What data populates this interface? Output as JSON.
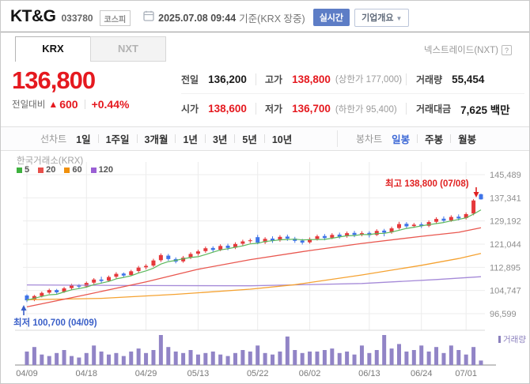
{
  "header": {
    "title": "KT&G",
    "code": "033780",
    "market_badge": "코스피",
    "datetime": "2025.07.08 09:44",
    "datetime_suffix": "기준(KRX 장중)",
    "realtime_badge": "실시간",
    "overview_button": "기업개요",
    "overview_caret": "▼"
  },
  "tabs": {
    "krx": "KRX",
    "nxt": "NXT",
    "nxt_info": "넥스트레이드(NXT)",
    "help_icon": "?"
  },
  "price": {
    "current": "136,800",
    "change_label": "전일대비",
    "change_arrow": "▲",
    "change": "600",
    "change_pct": "+0.44%"
  },
  "quote": {
    "prev_label": "전일",
    "prev": "136,200",
    "high_label": "고가",
    "high": "138,800",
    "upper_limit": "(상한가 177,000)",
    "volume_label": "거래량",
    "volume": "55,454",
    "open_label": "시가",
    "open": "138,600",
    "low_label": "저가",
    "low": "136,700",
    "lower_limit": "(하한가 95,400)",
    "value_label": "거래대금",
    "value": "7,625 백만"
  },
  "toolbar": {
    "line_label": "선차트",
    "periods": [
      "1일",
      "1주일",
      "3개월",
      "1년",
      "3년",
      "5년",
      "10년"
    ],
    "candle_label": "봉차트",
    "candle_types": [
      "일봉",
      "주봉",
      "월봉"
    ],
    "selected_type": "일봉"
  },
  "chart_data": {
    "type": "candlestick",
    "title": "KT&G daily candles with volume",
    "exchange_label": "한국거래소(KRX)",
    "volume_legend_label": "거래량",
    "annotations": {
      "high": {
        "text": "최고 138,800 (07/08)",
        "color": "#e02020"
      },
      "low": {
        "text": "최저 100,700 (04/09)",
        "color": "#3a5fc8"
      }
    },
    "ma_legend": [
      {
        "label": "5",
        "color": "#3eb13e"
      },
      {
        "label": "20",
        "color": "#e8504a"
      },
      {
        "label": "60",
        "color": "#f0900c"
      },
      {
        "label": "120",
        "color": "#9a5fd4"
      }
    ],
    "colors": {
      "up": "#e5383b",
      "down": "#3f74e8",
      "volume": "#9184c6",
      "ma5": "#5cb85c",
      "ma20": "#e9574f",
      "ma60": "#f5a231",
      "ma120": "#a58ad8",
      "grid": "#ececec",
      "axis_text": "#8e8e8e"
    },
    "ylim": [
      96599,
      145489
    ],
    "y_ticks": [
      "145,489",
      "137,341",
      "129,192",
      "121,044",
      "112,895",
      "104,747",
      "96,599"
    ],
    "y_tick_values": [
      145489,
      137341,
      129192,
      121044,
      112895,
      104747,
      96599
    ],
    "x_ticks": [
      {
        "label": "04/09",
        "index": 0
      },
      {
        "label": "04/18",
        "index": 8
      },
      {
        "label": "04/29",
        "index": 16
      },
      {
        "label": "05/13",
        "index": 23
      },
      {
        "label": "05/22",
        "index": 31
      },
      {
        "label": "06/02",
        "index": 38
      },
      {
        "label": "06/13",
        "index": 46
      },
      {
        "label": "06/24",
        "index": 53
      },
      {
        "label": "07/01",
        "index": 59
      }
    ],
    "candles_ohlc": [
      [
        103000,
        103400,
        100700,
        101300
      ],
      [
        101500,
        103200,
        101000,
        102800
      ],
      [
        102800,
        104400,
        102300,
        103900
      ],
      [
        104000,
        105400,
        103500,
        104900
      ],
      [
        104900,
        105300,
        103600,
        104100
      ],
      [
        104300,
        106000,
        103900,
        105500
      ],
      [
        105600,
        107100,
        105000,
        106500
      ],
      [
        106600,
        107000,
        105400,
        106100
      ],
      [
        106200,
        107900,
        105800,
        107400
      ],
      [
        107500,
        109100,
        107000,
        108600
      ],
      [
        108600,
        109600,
        107200,
        108100
      ],
      [
        108200,
        110000,
        107800,
        109500
      ],
      [
        109600,
        111200,
        109000,
        110600
      ],
      [
        110700,
        111100,
        109300,
        110000
      ],
      [
        110200,
        112000,
        109800,
        111500
      ],
      [
        111600,
        113400,
        111000,
        112800
      ],
      [
        112900,
        114000,
        112200,
        113400
      ],
      [
        113500,
        115900,
        113000,
        115300
      ],
      [
        115400,
        117800,
        114800,
        117200
      ],
      [
        117000,
        117600,
        115200,
        115800
      ],
      [
        115800,
        116400,
        114300,
        114900
      ],
      [
        115000,
        116900,
        114500,
        116300
      ],
      [
        116400,
        118200,
        115800,
        117600
      ],
      [
        117700,
        119100,
        117000,
        118500
      ],
      [
        118600,
        120200,
        118000,
        119600
      ],
      [
        119700,
        120300,
        118300,
        119000
      ],
      [
        119100,
        121000,
        118600,
        120400
      ],
      [
        120500,
        121200,
        118900,
        119700
      ],
      [
        119800,
        121700,
        119300,
        121100
      ],
      [
        121200,
        122600,
        120500,
        122000
      ],
      [
        122100,
        123000,
        121400,
        122400
      ],
      [
        123500,
        124300,
        121000,
        121600
      ],
      [
        121700,
        123500,
        121100,
        122900
      ],
      [
        123000,
        123800,
        121500,
        122300
      ],
      [
        122400,
        124200,
        121900,
        123600
      ],
      [
        123700,
        124400,
        122200,
        123000
      ],
      [
        123000,
        123600,
        121500,
        122200
      ],
      [
        122300,
        122900,
        120900,
        121600
      ],
      [
        121700,
        123400,
        121200,
        122800
      ],
      [
        122900,
        124400,
        122300,
        123800
      ],
      [
        123900,
        124600,
        122400,
        123200
      ],
      [
        123300,
        124900,
        122800,
        124300
      ],
      [
        124400,
        125100,
        123000,
        123700
      ],
      [
        123800,
        125500,
        123300,
        124900
      ],
      [
        125000,
        125700,
        123500,
        124300
      ],
      [
        124400,
        125600,
        123800,
        124900
      ],
      [
        125000,
        125600,
        123400,
        124200
      ],
      [
        124300,
        126300,
        123900,
        125700
      ],
      [
        125800,
        126400,
        123800,
        125100
      ],
      [
        125200,
        127200,
        124700,
        126600
      ],
      [
        126700,
        128900,
        126200,
        128100
      ],
      [
        128200,
        128800,
        126600,
        127300
      ],
      [
        127400,
        128500,
        126800,
        127900
      ],
      [
        128000,
        128700,
        126700,
        127400
      ],
      [
        127500,
        129400,
        127000,
        128800
      ],
      [
        128900,
        130500,
        128300,
        129900
      ],
      [
        130000,
        130800,
        128600,
        129300
      ],
      [
        129400,
        131200,
        128900,
        130600
      ],
      [
        130700,
        131500,
        129400,
        130100
      ],
      [
        130200,
        132200,
        129700,
        131600
      ],
      [
        131800,
        136900,
        131200,
        136400
      ],
      [
        138600,
        138800,
        136700,
        136800
      ]
    ],
    "ma_lines": [
      {
        "name": "ma20",
        "color": "#e9574f",
        "points": [
          [
            0,
            99000
          ],
          [
            8,
            103300
          ],
          [
            16,
            107800
          ],
          [
            23,
            112200
          ],
          [
            30,
            115600
          ],
          [
            38,
            118800
          ],
          [
            45,
            121300
          ],
          [
            53,
            123800
          ],
          [
            58,
            125200
          ],
          [
            61,
            126800
          ]
        ]
      },
      {
        "name": "ma60",
        "color": "#f5a231",
        "points": [
          [
            0,
            101500
          ],
          [
            10,
            102000
          ],
          [
            20,
            103400
          ],
          [
            30,
            105200
          ],
          [
            36,
            106800
          ],
          [
            45,
            110200
          ],
          [
            53,
            113600
          ],
          [
            58,
            116000
          ],
          [
            61,
            117800
          ]
        ]
      },
      {
        "name": "ma120",
        "color": "#a58ad8",
        "points": [
          [
            0,
            106700
          ],
          [
            15,
            106500
          ],
          [
            30,
            106400
          ],
          [
            45,
            107200
          ],
          [
            55,
            108600
          ],
          [
            61,
            109600
          ]
        ]
      }
    ],
    "volumes_pct": [
      45,
      60,
      35,
      30,
      40,
      50,
      30,
      25,
      40,
      65,
      45,
      35,
      40,
      30,
      45,
      55,
      40,
      50,
      100,
      60,
      45,
      40,
      50,
      35,
      40,
      45,
      35,
      30,
      40,
      50,
      45,
      65,
      40,
      35,
      45,
      95,
      50,
      40,
      45,
      45,
      50,
      55,
      40,
      45,
      35,
      65,
      40,
      50,
      100,
      55,
      70,
      45,
      50,
      65,
      45,
      60,
      40,
      65,
      50,
      35,
      60,
      15
    ]
  }
}
